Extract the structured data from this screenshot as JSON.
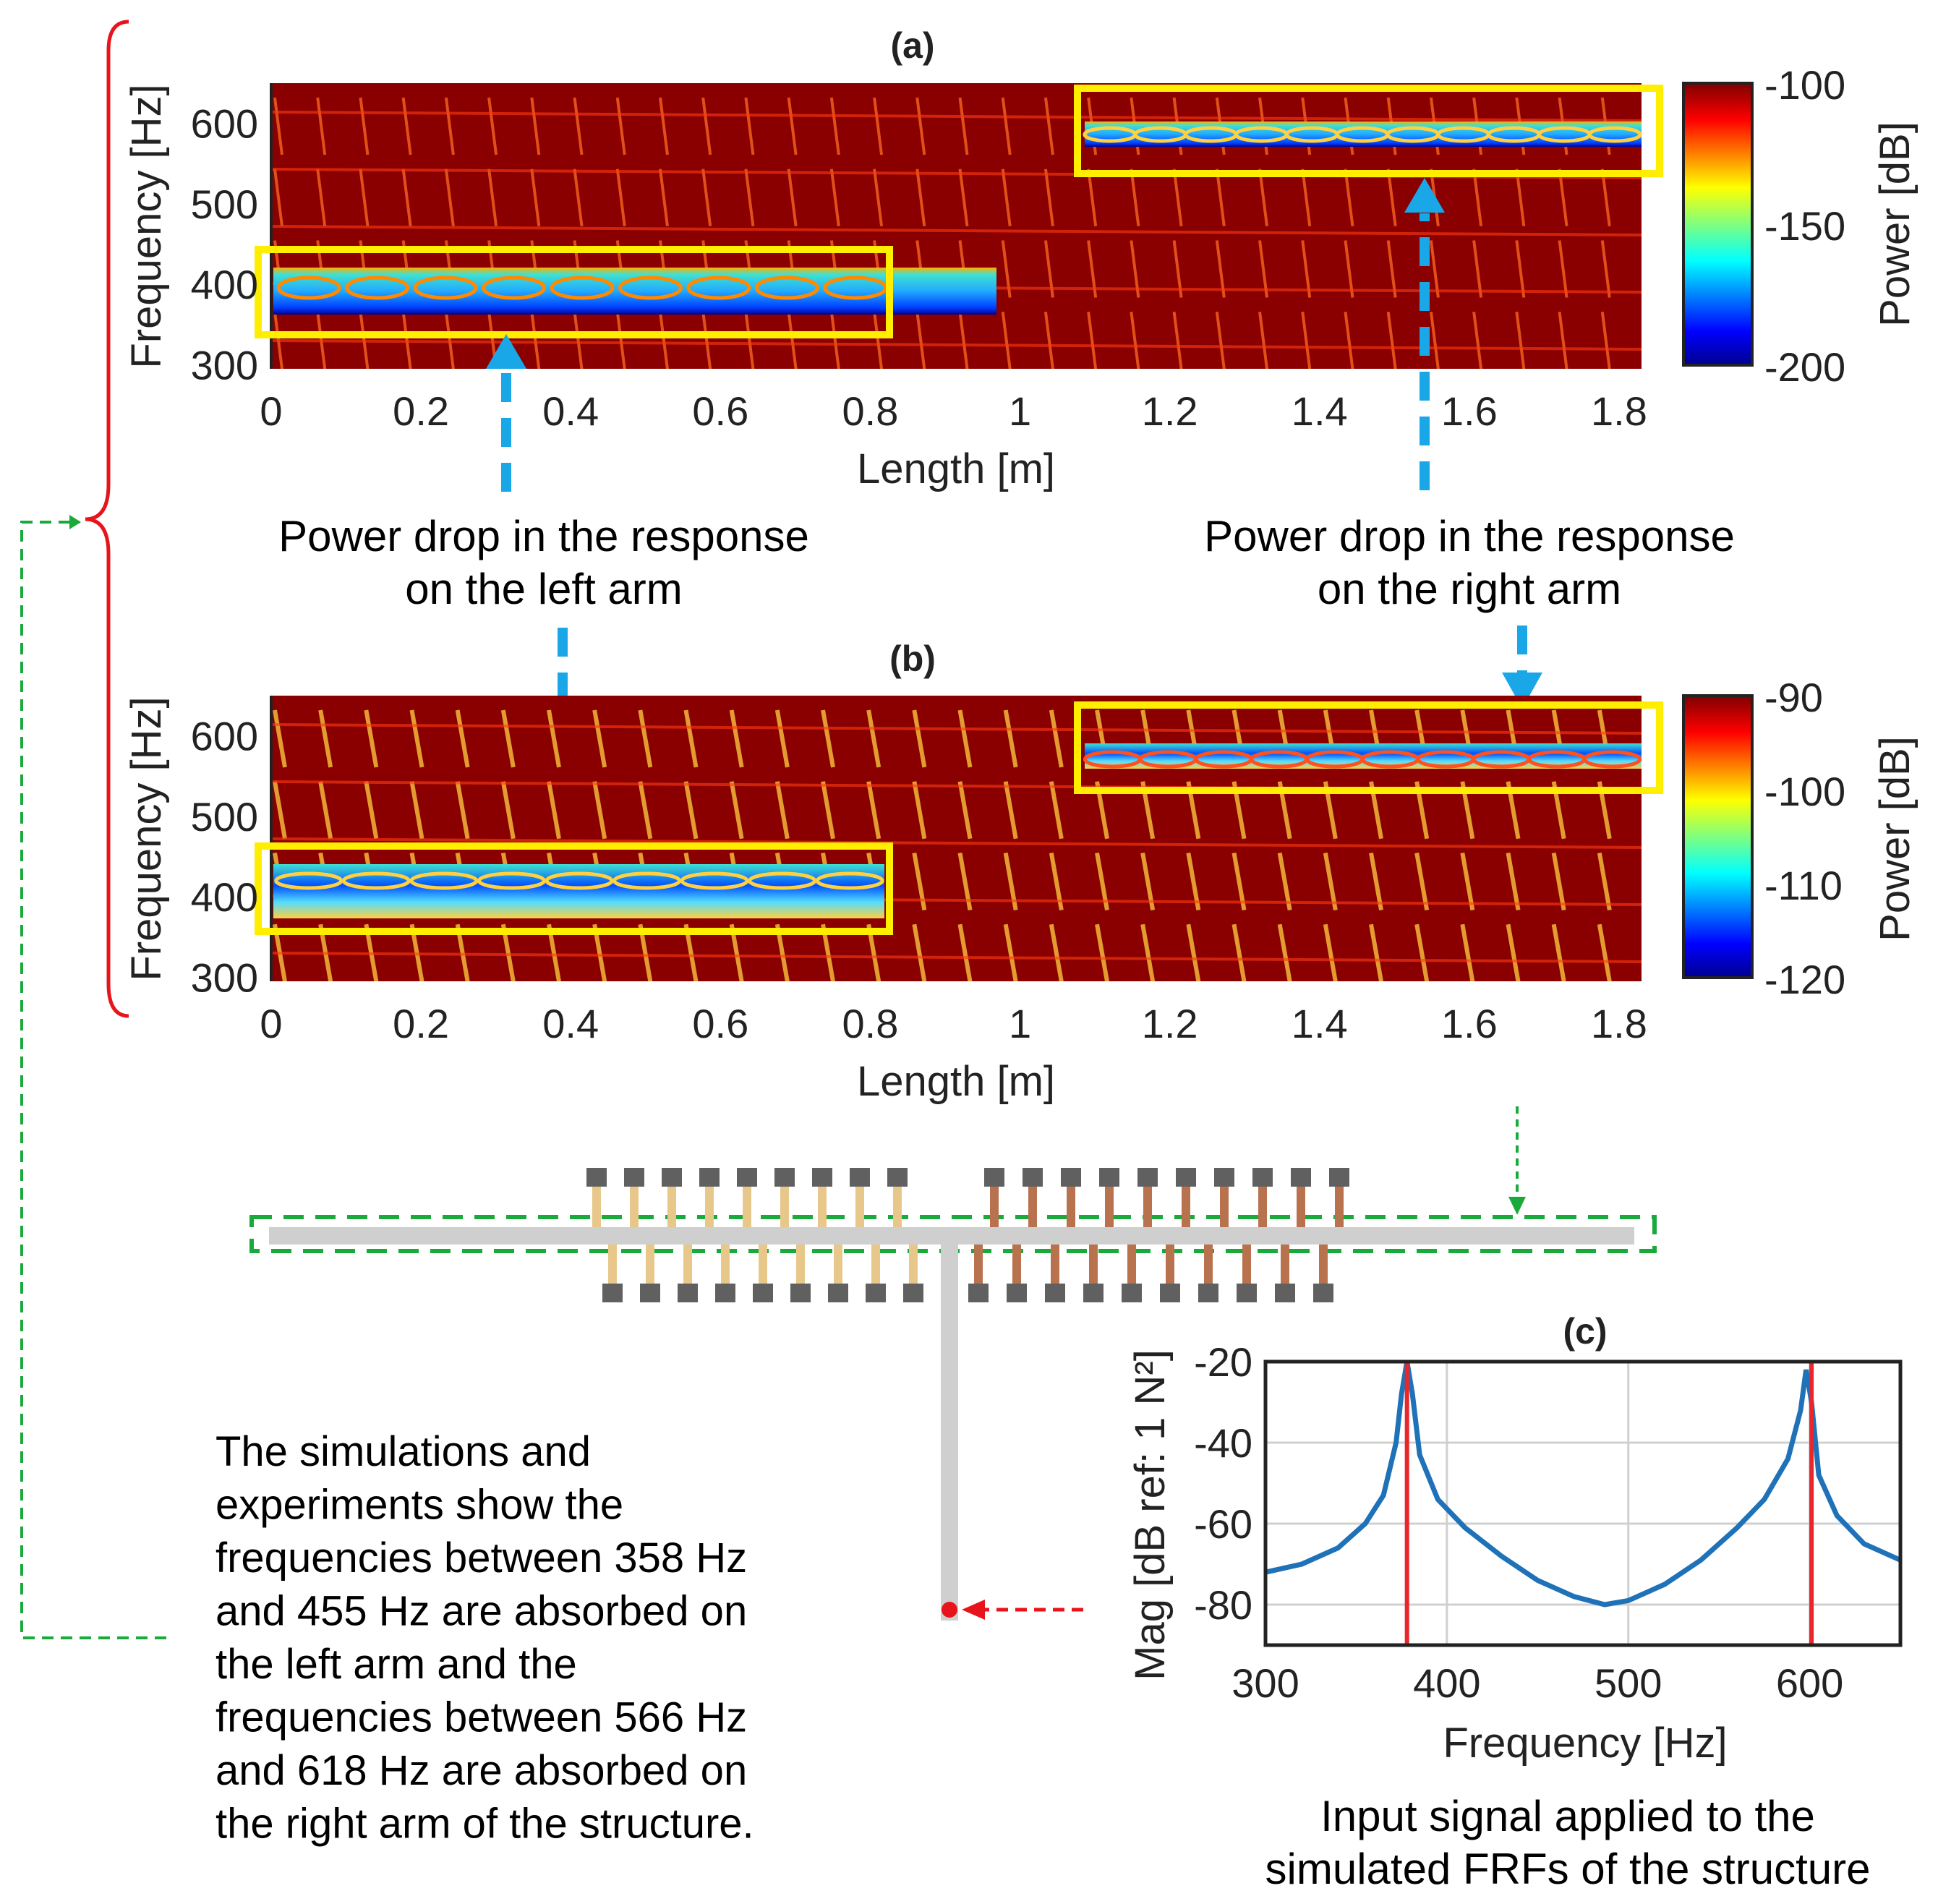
{
  "panel_a": {
    "title": "(a)",
    "xlabel": "Length [m]",
    "ylabel": "Frequency [Hz]",
    "colorbar_label": "Power [dB]"
  },
  "panel_b": {
    "title": "(b)",
    "xlabel": "Length [m]",
    "ylabel": "Frequency [Hz]",
    "colorbar_label": "Power [dB]"
  },
  "panel_c": {
    "title": "(c)",
    "xlabel": "Frequency [Hz]",
    "ylabel": "Mag [dB ref: 1 N²]"
  },
  "annotations": {
    "left_arm_line1": "Power drop in the response",
    "left_arm_line2": "on the left arm",
    "right_arm_line1": "Power drop in the response",
    "right_arm_line2": "on the right arm",
    "summary_lines": [
      "The simulations and",
      "experiments show the",
      "frequencies between 358 Hz",
      "and 455 Hz are absorbed on",
      "the left arm and the",
      "frequencies between 566 Hz",
      "and 618 Hz are absorbed on",
      "the right arm of the structure."
    ],
    "input_signal_line1": "Input signal applied to the",
    "input_signal_line2": "simulated FRFs of the structure"
  },
  "colors": {
    "highlight_box": "#ffee00",
    "arrow_blue": "#1aa7e8",
    "bracket_red": "#e8141b",
    "dashed_green": "#1aaa3c",
    "frf_line": "#1f72b8",
    "frf_red": "#e8262b",
    "beam": "#cfcfcf",
    "left_resonators": "#e8c88a",
    "right_resonators": "#b8724e",
    "masses": "#606060"
  },
  "chart_data": [
    {
      "type": "heatmap",
      "panel": "a",
      "x_ticks": [
        0,
        0.2,
        0.4,
        0.6,
        0.8,
        1,
        1.2,
        1.4,
        1.6,
        1.8
      ],
      "y_ticks": [
        300,
        400,
        500,
        600
      ],
      "xlim": [
        0,
        1.83
      ],
      "ylim": [
        295,
        650
      ],
      "colorbar_ticks": [
        -100,
        -150,
        -200
      ],
      "colorbar_range": [
        -200,
        -100
      ],
      "colormap": "jet",
      "low_power_bands": [
        {
          "x": [
            0,
            0.8
          ],
          "y": [
            358,
            420
          ]
        },
        {
          "x": [
            1.1,
            1.83
          ],
          "y": [
            575,
            610
          ]
        }
      ]
    },
    {
      "type": "heatmap",
      "panel": "b",
      "x_ticks": [
        0,
        0.2,
        0.4,
        0.6,
        0.8,
        1,
        1.2,
        1.4,
        1.6,
        1.8
      ],
      "y_ticks": [
        300,
        400,
        500,
        600
      ],
      "xlim": [
        0,
        1.83
      ],
      "ylim": [
        295,
        650
      ],
      "colorbar_ticks": [
        -90,
        -100,
        -110,
        -120
      ],
      "colorbar_range": [
        -120,
        -90
      ],
      "colormap": "jet",
      "low_power_bands": [
        {
          "x": [
            0,
            0.82
          ],
          "y": [
            395,
            450
          ]
        },
        {
          "x": [
            1.1,
            1.83
          ],
          "y": [
            560,
            600
          ]
        }
      ]
    },
    {
      "type": "line",
      "panel": "c",
      "x_ticks": [
        300,
        400,
        500,
        600
      ],
      "y_ticks": [
        -20,
        -40,
        -60,
        -80
      ],
      "xlim": [
        300,
        650
      ],
      "ylim": [
        -90,
        -20
      ],
      "grid": true,
      "series": [
        {
          "x": [
            300,
            320,
            340,
            355,
            365,
            372,
            375,
            378,
            381,
            385,
            395,
            410,
            430,
            450,
            470,
            487,
            500,
            520,
            540,
            560,
            575,
            588,
            595,
            598,
            601,
            605,
            615,
            630,
            650
          ],
          "y": [
            -72,
            -70,
            -66,
            -60,
            -53,
            -40,
            -28,
            -20,
            -28,
            -43,
            -54,
            -61,
            -68,
            -74,
            -78,
            -80,
            -79,
            -75,
            -69,
            -61,
            -54,
            -44,
            -32,
            -22,
            -30,
            -48,
            -58,
            -65,
            -69
          ]
        }
      ],
      "markers_x": [
        378,
        601
      ]
    }
  ]
}
